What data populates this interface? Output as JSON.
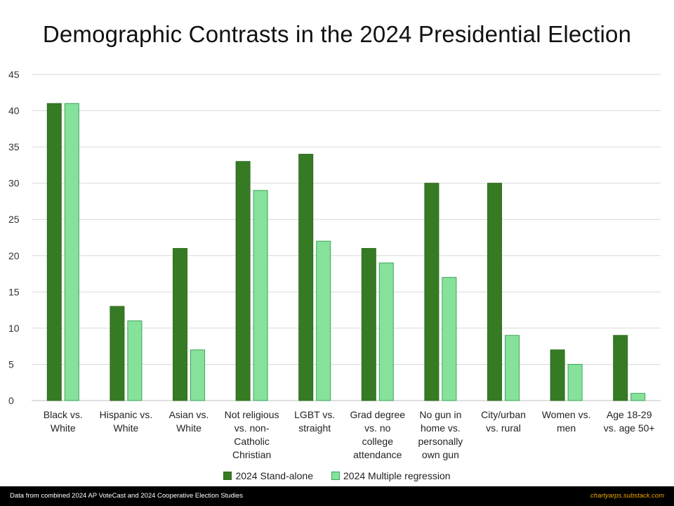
{
  "colors": {
    "series1": "#367b24",
    "series1_edge": "#2d6b1e",
    "series2": "#86e29a",
    "series2_edge": "#3aa45c",
    "grid": "#d9d9d9",
    "credit": "#f0a500"
  },
  "footer": {
    "source": "Data from combined 2024 AP VoteCast and 2024 Cooperative Election Studies",
    "credit": "chartyarps.substack.com"
  },
  "chart_data": {
    "type": "bar",
    "title": "Demographic Contrasts in the 2024 Presidential Election",
    "xlabel": "",
    "ylabel": "",
    "ylim": [
      0,
      45
    ],
    "yticks": [
      0,
      5,
      10,
      15,
      20,
      25,
      30,
      35,
      40,
      45
    ],
    "grid": true,
    "legend_position": "bottom",
    "categories": [
      [
        "Black vs.",
        "White"
      ],
      [
        "Hispanic vs.",
        "White"
      ],
      [
        "Asian vs.",
        "White"
      ],
      [
        "Not religious",
        "vs. non-",
        "Catholic",
        "Christian"
      ],
      [
        "LGBT vs.",
        "straight"
      ],
      [
        "Grad degree",
        "vs. no",
        "college",
        "attendance"
      ],
      [
        "No gun in",
        "home vs.",
        "personally",
        "own gun"
      ],
      [
        "City/urban",
        "vs. rural"
      ],
      [
        "Women vs.",
        "men"
      ],
      [
        "Age 18-29",
        "vs. age 50+"
      ]
    ],
    "series": [
      {
        "name": "2024 Stand-alone",
        "values": [
          41,
          13,
          21,
          33,
          34,
          21,
          30,
          30,
          7,
          9
        ]
      },
      {
        "name": "2024 Multiple regression",
        "values": [
          41,
          11,
          7,
          29,
          22,
          19,
          17,
          9,
          5,
          1
        ]
      }
    ]
  }
}
